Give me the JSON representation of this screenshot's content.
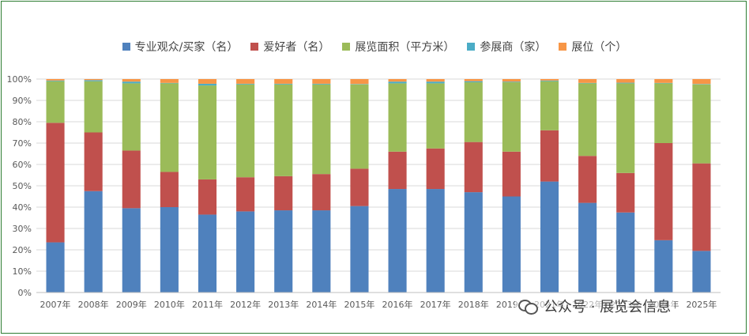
{
  "chart_data": {
    "type": "bar",
    "stacked": "percent",
    "categories": [
      "2007年",
      "2008年",
      "2009年",
      "2010年",
      "2011年",
      "2012年",
      "2013年",
      "2014年",
      "2015年",
      "2016年",
      "2017年",
      "2018年",
      "2019年",
      "2021年",
      "2022年",
      "2023年",
      "2024年",
      "2025年"
    ],
    "series": [
      {
        "name": "专业观众/买家（名）",
        "color": "#4f81bd",
        "values": [
          23.5,
          47.5,
          39.5,
          40,
          36.5,
          38,
          38.5,
          38.5,
          40.5,
          48.5,
          48.5,
          47,
          45,
          52,
          42,
          37.5,
          24.5,
          19.5
        ]
      },
      {
        "name": "爱好者（名）",
        "color": "#c0504d",
        "values": [
          56,
          27.5,
          27,
          16.5,
          16.5,
          16,
          16,
          17,
          17.5,
          17.5,
          19,
          23.5,
          21,
          24,
          22,
          18.5,
          45.5,
          41
        ]
      },
      {
        "name": "展览面积（平方米）",
        "color": "#9bbb59",
        "values": [
          19.5,
          24,
          31.5,
          41.5,
          44,
          43.5,
          43,
          42,
          39.5,
          32,
          30.5,
          28,
          32.5,
          23,
          34,
          42,
          28,
          37
        ]
      },
      {
        "name": "参展商（家）",
        "color": "#4bacc6",
        "values": [
          0.3,
          0.5,
          0.8,
          0.2,
          0.8,
          0.3,
          0.3,
          0.3,
          0.2,
          0.8,
          0.8,
          0.5,
          0.3,
          0.3,
          0.2,
          0.3,
          0.2,
          0.2
        ]
      },
      {
        "name": "展位（个）",
        "color": "#f79646",
        "values": [
          0.7,
          0.5,
          1.2,
          1.8,
          2.2,
          2.2,
          2.2,
          2.2,
          2.3,
          1.2,
          1.2,
          1,
          1.2,
          0.7,
          1.8,
          1.7,
          1.8,
          2.3
        ]
      }
    ],
    "y_ticks": [
      "0%",
      "10%",
      "20%",
      "30%",
      "40%",
      "50%",
      "60%",
      "70%",
      "80%",
      "90%",
      "100%"
    ],
    "ylim": [
      0,
      100
    ],
    "grid": true,
    "legend_position": "top",
    "title": "",
    "xlabel": "",
    "ylabel": ""
  },
  "watermark": {
    "text": "公众号 · 展览会信息",
    "icon": "wechat-logo-icon"
  }
}
